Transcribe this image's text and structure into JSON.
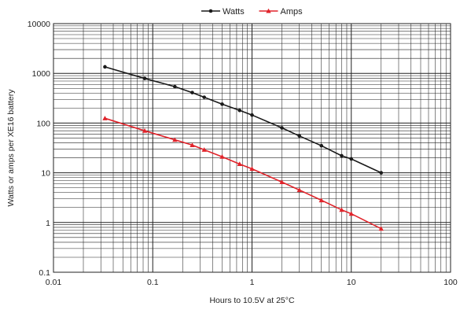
{
  "chart_data": {
    "type": "line",
    "xlabel": "Hours to 10.5V at 25°C",
    "ylabel": "Watts or amps per XE16 battery",
    "x_scale": "log",
    "y_scale": "log",
    "xlim": [
      0.01,
      100
    ],
    "ylim": [
      0.1,
      10000
    ],
    "grid": true,
    "legend_position": "top-center",
    "x_tick_labels": [
      "0.01",
      "0.1",
      "1",
      "10",
      "100"
    ],
    "y_tick_labels": [
      "0.1",
      "1",
      "10",
      "100",
      "1000",
      "10000"
    ],
    "series": [
      {
        "name": "Watts",
        "color": "#1a1a1a",
        "marker": "circle",
        "points": [
          {
            "x": 0.033,
            "y": 1350
          },
          {
            "x": 0.083,
            "y": 790
          },
          {
            "x": 0.167,
            "y": 540
          },
          {
            "x": 0.25,
            "y": 410
          },
          {
            "x": 0.33,
            "y": 330
          },
          {
            "x": 0.5,
            "y": 240
          },
          {
            "x": 0.75,
            "y": 180
          },
          {
            "x": 1,
            "y": 145
          },
          {
            "x": 2,
            "y": 80
          },
          {
            "x": 3,
            "y": 55
          },
          {
            "x": 5,
            "y": 35
          },
          {
            "x": 8,
            "y": 22
          },
          {
            "x": 10,
            "y": 19
          },
          {
            "x": 20,
            "y": 10
          }
        ]
      },
      {
        "name": "Amps",
        "color": "#e0242b",
        "marker": "triangle",
        "points": [
          {
            "x": 0.033,
            "y": 125
          },
          {
            "x": 0.083,
            "y": 70
          },
          {
            "x": 0.167,
            "y": 46
          },
          {
            "x": 0.25,
            "y": 36
          },
          {
            "x": 0.33,
            "y": 29
          },
          {
            "x": 0.5,
            "y": 21
          },
          {
            "x": 0.75,
            "y": 15
          },
          {
            "x": 1,
            "y": 12
          },
          {
            "x": 2,
            "y": 6.5
          },
          {
            "x": 3,
            "y": 4.5
          },
          {
            "x": 5,
            "y": 2.8
          },
          {
            "x": 8,
            "y": 1.8
          },
          {
            "x": 10,
            "y": 1.5
          },
          {
            "x": 20,
            "y": 0.75
          }
        ]
      }
    ]
  }
}
